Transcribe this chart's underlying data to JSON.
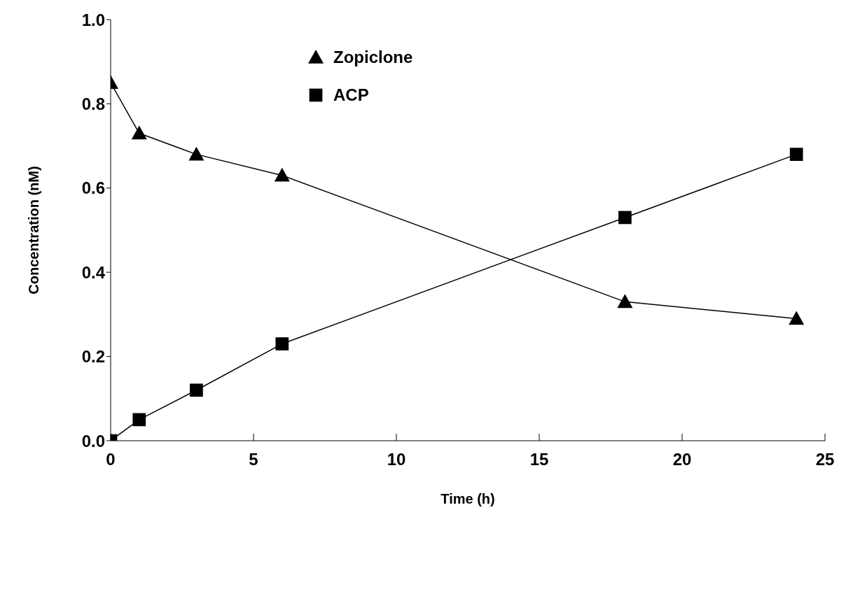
{
  "chart_data": {
    "type": "line",
    "xlabel": "Time (h)",
    "ylabel": "Concentration (nM)",
    "xlim": [
      0,
      25
    ],
    "xticks": [
      0,
      5,
      10,
      15,
      20,
      25
    ],
    "ylim": [
      0,
      1
    ],
    "yticks": [
      {
        "value": 0,
        "label": "0.0"
      },
      {
        "value": 0.2,
        "label": "0.2"
      },
      {
        "value": 0.4,
        "label": "0.4"
      },
      {
        "value": 0.6,
        "label": "0.6"
      },
      {
        "value": 0.8,
        "label": "0.8"
      },
      {
        "value": 1,
        "label": "1.0"
      }
    ],
    "grid": false,
    "legend": "top",
    "line_style": "solid",
    "x": [
      0,
      1,
      3,
      6,
      18,
      24
    ],
    "series": [
      {
        "name": "Zopiclone",
        "color": "#000000",
        "marker": "triangle",
        "values": [
          0.85,
          0.73,
          0.68,
          0.63,
          0.33,
          0.29
        ]
      },
      {
        "name": "ACP",
        "color": "#000000",
        "marker": "square",
        "values": [
          0,
          0.05,
          0.12,
          0.23,
          0.53,
          0.68
        ]
      }
    ]
  }
}
